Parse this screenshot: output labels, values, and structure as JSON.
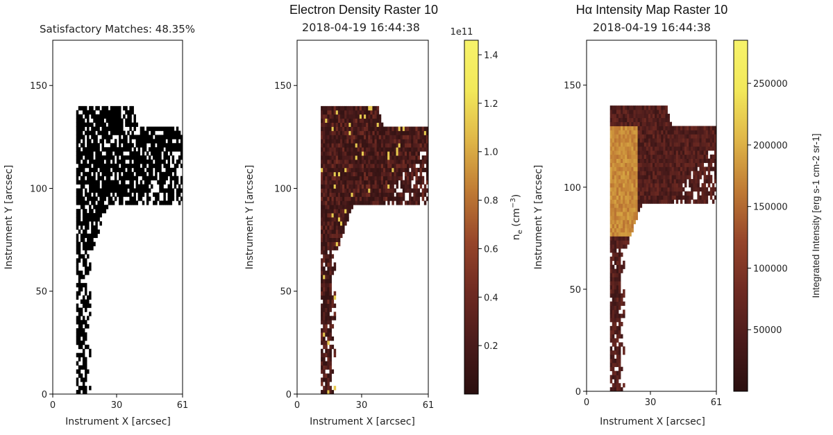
{
  "colors": {
    "mask": "#000000",
    "frame": "#000000",
    "cmap": [
      "#2a0f0f",
      "#4a1b1b",
      "#6e2a22",
      "#96452a",
      "#bf7a34",
      "#dfb548",
      "#f2e85a",
      "#f7f36a"
    ]
  },
  "chart_data": [
    {
      "type": "heatmap",
      "title": "Satisfactory Matches: 48.35%",
      "subtitle": "",
      "xlabel": "Instrument X [arcsec]",
      "ylabel": "Instrument Y [arcsec]",
      "xlim": [
        0,
        61
      ],
      "ylim": [
        0,
        172
      ],
      "xticks": [
        "0",
        "30",
        "61"
      ],
      "yticks": [
        "0",
        "50",
        "100",
        "150"
      ],
      "colormap": "binary mask (black = satisfactory match)",
      "grid": false
    },
    {
      "type": "heatmap",
      "title": "Electron Density Raster 10",
      "subtitle": "2018-04-19 16:44:38",
      "xlabel": "Instrument X [arcsec]",
      "ylabel": "Instrument Y [arcsec]",
      "xlim": [
        0,
        61
      ],
      "ylim": [
        0,
        172
      ],
      "xticks": [
        "0",
        "30",
        "61"
      ],
      "yticks": [
        "0",
        "50",
        "100",
        "150"
      ],
      "colorbar": {
        "label": "n_e (cm^-3)",
        "label_main": "n",
        "label_sub": "e",
        "label_unit": " (cm",
        "label_exp": "−3",
        "label_close": ")",
        "multiplier": "1e11",
        "range": [
          0,
          1.46
        ],
        "ticks": [
          "0.2",
          "0.4",
          "0.6",
          "0.8",
          "1.0",
          "1.2",
          "1.4"
        ]
      },
      "colormap": "afmhot-like (dark brown to yellow)",
      "grid": false
    },
    {
      "type": "heatmap",
      "title": "Hα Intensity Map Raster 10",
      "subtitle": "2018-04-19 16:44:38",
      "xlabel": "Instrument X [arcsec]",
      "ylabel": "Instrument Y [arcsec]",
      "xlim": [
        0,
        61
      ],
      "ylim": [
        0,
        172
      ],
      "xticks": [
        "0",
        "30",
        "61"
      ],
      "yticks": [
        "0",
        "50",
        "100",
        "150"
      ],
      "colorbar": {
        "label": "Integrated Intensity [erg s-1 cm-2 sr-1]",
        "ticks": [
          "50000",
          "100000",
          "150000",
          "200000",
          "250000"
        ],
        "range": [
          0,
          285000
        ]
      },
      "colormap": "afmhot-like (dark brown to yellow)",
      "grid": false
    }
  ]
}
